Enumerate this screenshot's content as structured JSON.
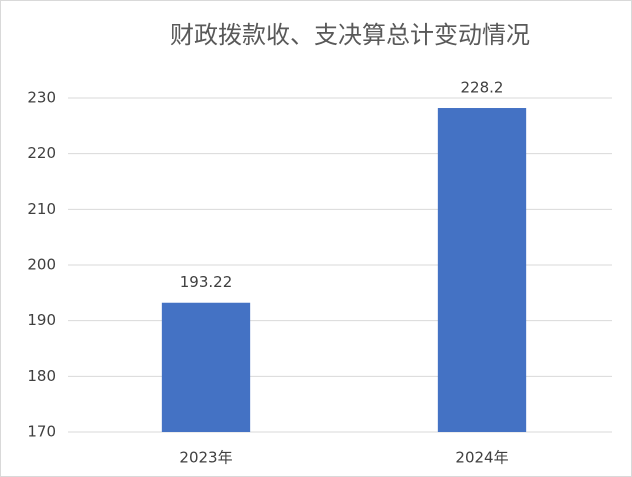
{
  "chart_data": {
    "type": "bar",
    "title": "财政拨款收、支决算总计变动情况",
    "categories": [
      "2023年",
      "2024年"
    ],
    "values": [
      193.22,
      228.2
    ],
    "color": "#4472c4",
    "ylim": [
      170,
      230
    ],
    "yticks": [
      170,
      180,
      190,
      200,
      210,
      220,
      230
    ],
    "grid": true,
    "data_labels": true
  }
}
